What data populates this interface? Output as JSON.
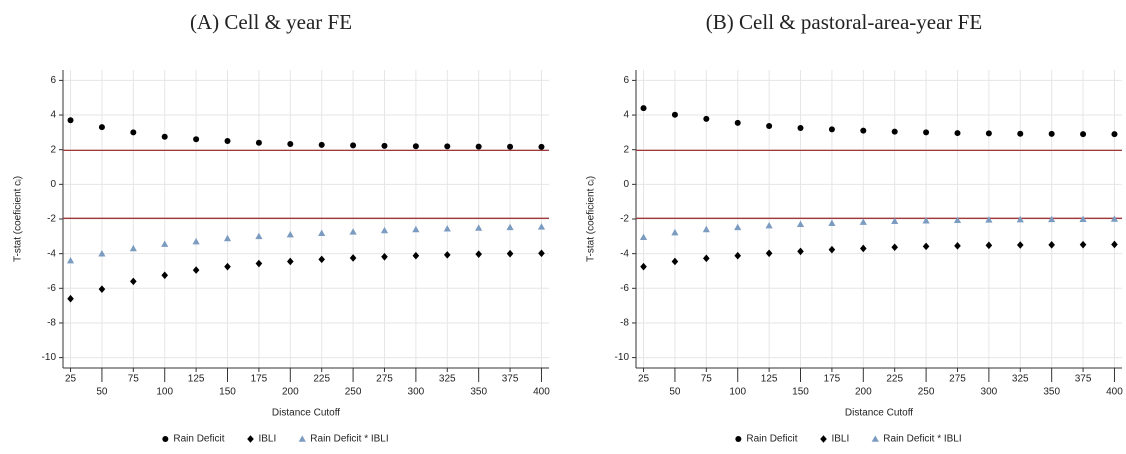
{
  "chart_data": [
    {
      "type": "scatter",
      "title": "(A) Cell & year FE",
      "x_label": "Distance Cutoff",
      "y_label": "T-stat (coeficient cᵢ)",
      "x": [
        25,
        50,
        75,
        100,
        125,
        150,
        175,
        200,
        225,
        250,
        275,
        300,
        325,
        350,
        375,
        400
      ],
      "series": [
        {
          "name": "Rain Deficit",
          "color": "#000000",
          "marker": "circle",
          "values": [
            3.7,
            3.3,
            3.0,
            2.75,
            2.6,
            2.5,
            2.4,
            2.33,
            2.28,
            2.25,
            2.22,
            2.2,
            2.19,
            2.18,
            2.17,
            2.16
          ]
        },
        {
          "name": "IBLI",
          "color": "#000000",
          "marker": "diamond",
          "values": [
            -6.6,
            -6.05,
            -5.6,
            -5.25,
            -4.95,
            -4.75,
            -4.57,
            -4.45,
            -4.33,
            -4.25,
            -4.18,
            -4.12,
            -4.07,
            -4.03,
            -4.0,
            -3.98
          ]
        },
        {
          "name": "Rain Deficit * IBLI",
          "color": "#7b9cc0",
          "marker": "triangle",
          "values": [
            -4.4,
            -4.0,
            -3.7,
            -3.45,
            -3.3,
            -3.12,
            -3.0,
            -2.9,
            -2.82,
            -2.74,
            -2.66,
            -2.6,
            -2.56,
            -2.52,
            -2.48,
            -2.45
          ]
        }
      ],
      "xlim": [
        19,
        406
      ],
      "xticks": [
        25,
        50,
        75,
        100,
        125,
        150,
        175,
        200,
        225,
        250,
        275,
        300,
        325,
        350,
        375,
        400
      ],
      "ylim": [
        -10.6,
        6.6
      ],
      "yticks": [
        -10,
        -8,
        -6,
        -4,
        -2,
        0,
        2,
        4,
        6
      ],
      "ref_lines": [
        1.96,
        -1.96
      ],
      "ref_color": "#a0393b",
      "grid": true,
      "legend": "bottom"
    },
    {
      "type": "scatter",
      "title": "(B) Cell & pastoral-area-year FE",
      "x_label": "Distance Cutoff",
      "y_label": "T-stat (coeficient cᵢ)",
      "x": [
        25,
        50,
        75,
        100,
        125,
        150,
        175,
        200,
        225,
        250,
        275,
        300,
        325,
        350,
        375,
        400
      ],
      "series": [
        {
          "name": "Rain Deficit",
          "color": "#000000",
          "marker": "circle",
          "values": [
            4.4,
            4.02,
            3.78,
            3.55,
            3.37,
            3.25,
            3.17,
            3.1,
            3.04,
            3.0,
            2.96,
            2.94,
            2.92,
            2.91,
            2.9,
            2.9
          ]
        },
        {
          "name": "IBLI",
          "color": "#000000",
          "marker": "diamond",
          "values": [
            -4.75,
            -4.45,
            -4.27,
            -4.12,
            -3.98,
            -3.87,
            -3.77,
            -3.7,
            -3.63,
            -3.58,
            -3.55,
            -3.52,
            -3.5,
            -3.49,
            -3.48,
            -3.47
          ]
        },
        {
          "name": "Rain Deficit * IBLI",
          "color": "#7b9cc0",
          "marker": "triangle",
          "values": [
            -3.05,
            -2.78,
            -2.6,
            -2.48,
            -2.38,
            -2.3,
            -2.24,
            -2.18,
            -2.13,
            -2.1,
            -2.07,
            -2.05,
            -2.03,
            -2.02,
            -2.01,
            -2.0
          ]
        }
      ],
      "xlim": [
        19,
        406
      ],
      "xticks": [
        25,
        50,
        75,
        100,
        125,
        150,
        175,
        200,
        225,
        250,
        275,
        300,
        325,
        350,
        375,
        400
      ],
      "ylim": [
        -10.6,
        6.6
      ],
      "yticks": [
        -10,
        -8,
        -6,
        -4,
        -2,
        0,
        2,
        4,
        6
      ],
      "ref_lines": [
        1.96,
        -1.96
      ],
      "ref_color": "#a0393b",
      "grid": true,
      "legend": "bottom"
    }
  ]
}
